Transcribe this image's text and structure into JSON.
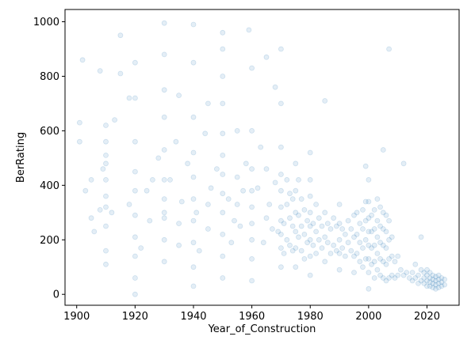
{
  "chart_data": {
    "type": "scatter",
    "xlabel": "Year_of_Construction",
    "ylabel": "BerRating",
    "xlim": [
      1896,
      2031
    ],
    "ylim": [
      -40,
      1045
    ],
    "xticks": [
      1900,
      1920,
      1940,
      1960,
      1980,
      2000,
      2020
    ],
    "yticks": [
      0,
      200,
      400,
      600,
      800,
      1000
    ],
    "grid": false,
    "legend": "none",
    "marker": "circle",
    "alpha": 0.12,
    "color": "#1f77b4",
    "series": [
      {
        "x": [
          1901,
          1901,
          1902,
          1903,
          1905,
          1905,
          1906,
          1908,
          1908,
          1909,
          1910,
          1910,
          1910,
          1910,
          1910,
          1910,
          1910,
          1910,
          1910,
          1910,
          1912,
          1913,
          1915,
          1915,
          1918,
          1918,
          1920,
          1920,
          1920,
          1920,
          1920,
          1920,
          1920,
          1920,
          1920,
          1920,
          1922,
          1924,
          1925,
          1926,
          1928,
          1930,
          1930,
          1930,
          1930,
          1930,
          1930,
          1930,
          1930,
          1930,
          1930,
          1930,
          1932,
          1934,
          1935,
          1935,
          1935,
          1936,
          1938,
          1940,
          1940,
          1940,
          1940,
          1940,
          1940,
          1940,
          1940,
          1940,
          1940,
          1941,
          1942,
          1944,
          1945,
          1945,
          1945,
          1946,
          1948,
          1950,
          1950,
          1950,
          1950,
          1950,
          1950,
          1950,
          1950,
          1950,
          1950,
          1950,
          1950,
          1952,
          1953,
          1954,
          1955,
          1955,
          1955,
          1956,
          1957,
          1958,
          1959,
          1960,
          1960,
          1960,
          1960,
          1960,
          1960,
          1960,
          1960,
          1960,
          1962,
          1963,
          1964,
          1965,
          1965,
          1965,
          1966,
          1967,
          1968,
          1968,
          1969,
          1970,
          1970,
          1970,
          1970,
          1970,
          1970,
          1970,
          1970,
          1970,
          1970,
          1971,
          1971,
          1972,
          1972,
          1972,
          1973,
          1973,
          1973,
          1974,
          1974,
          1974,
          1975,
          1975,
          1975,
          1975,
          1975,
          1975,
          1976,
          1976,
          1976,
          1977,
          1977,
          1977,
          1978,
          1978,
          1978,
          1979,
          1979,
          1980,
          1980,
          1980,
          1980,
          1980,
          1980,
          1980,
          1980,
          1981,
          1981,
          1982,
          1982,
          1982,
          1983,
          1983,
          1984,
          1984,
          1985,
          1985,
          1985,
          1986,
          1986,
          1987,
          1987,
          1988,
          1988,
          1989,
          1989,
          1990,
          1990,
          1990,
          1990,
          1990,
          1991,
          1991,
          1992,
          1992,
          1993,
          1993,
          1994,
          1994,
          1995,
          1995,
          1995,
          1995,
          1996,
          1996,
          1996,
          1997,
          1997,
          1997,
          1998,
          1998,
          1998,
          1998,
          1999,
          1999,
          1999,
          1999,
          2000,
          2000,
          2000,
          2000,
          2000,
          2000,
          2000,
          2000,
          2001,
          2001,
          2001,
          2001,
          2002,
          2002,
          2002,
          2002,
          2002,
          2003,
          2003,
          2003,
          2003,
          2003,
          2004,
          2004,
          2004,
          2004,
          2004,
          2005,
          2005,
          2005,
          2005,
          2005,
          2006,
          2006,
          2006,
          2006,
          2006,
          2007,
          2007,
          2007,
          2007,
          2008,
          2008,
          2008,
          2009,
          2009,
          2010,
          2010,
          2011,
          2012,
          2013,
          2014,
          2015,
          2015,
          2016,
          2016,
          2017,
          2017,
          2018,
          2018,
          2019,
          2019,
          2019,
          2020,
          2020,
          2020,
          2020,
          2021,
          2021,
          2021,
          2021,
          2022,
          2022,
          2022,
          2022,
          2023,
          2023,
          2023,
          2023,
          2024,
          2024,
          2024,
          2024,
          2025,
          2025,
          2025,
          2026,
          2026,
          2005,
          2007,
          1999,
          2012,
          2018,
          1985
        ],
        "y": [
          630,
          560,
          860,
          380,
          420,
          280,
          230,
          310,
          820,
          460,
          110,
          160,
          250,
          320,
          360,
          420,
          480,
          510,
          560,
          620,
          300,
          640,
          810,
          950,
          720,
          330,
          0,
          60,
          140,
          210,
          290,
          380,
          450,
          560,
          720,
          850,
          170,
          380,
          270,
          420,
          500,
          120,
          200,
          280,
          350,
          420,
          530,
          650,
          750,
          880,
          995,
          300,
          420,
          560,
          180,
          260,
          730,
          340,
          480,
          30,
          100,
          190,
          270,
          350,
          430,
          520,
          650,
          850,
          990,
          300,
          160,
          590,
          240,
          330,
          700,
          390,
          460,
          60,
          140,
          220,
          300,
          370,
          440,
          510,
          590,
          700,
          800,
          900,
          960,
          350,
          190,
          270,
          330,
          430,
          600,
          250,
          380,
          480,
          970,
          50,
          130,
          200,
          260,
          320,
          380,
          460,
          600,
          830,
          390,
          540,
          190,
          280,
          460,
          870,
          330,
          240,
          410,
          760,
          230,
          100,
          170,
          220,
          270,
          320,
          380,
          440,
          540,
          700,
          900,
          150,
          260,
          200,
          330,
          420,
          180,
          280,
          370,
          160,
          250,
          350,
          100,
          170,
          230,
          300,
          380,
          480,
          210,
          290,
          420,
          160,
          250,
          350,
          130,
          220,
          310,
          190,
          270,
          70,
          140,
          200,
          250,
          300,
          360,
          420,
          520,
          180,
          260,
          150,
          230,
          330,
          200,
          280,
          170,
          250,
          120,
          210,
          300,
          190,
          260,
          150,
          240,
          180,
          280,
          160,
          250,
          90,
          150,
          200,
          260,
          330,
          170,
          240,
          140,
          220,
          190,
          270,
          160,
          240,
          80,
          140,
          210,
          290,
          150,
          220,
          300,
          120,
          190,
          260,
          100,
          170,
          240,
          310,
          130,
          200,
          270,
          340,
          20,
          80,
          130,
          180,
          230,
          280,
          340,
          420,
          110,
          170,
          230,
          290,
          60,
          120,
          180,
          240,
          310,
          90,
          150,
          210,
          270,
          350,
          70,
          130,
          190,
          250,
          320,
          60,
          120,
          180,
          240,
          300,
          50,
          110,
          170,
          230,
          290,
          60,
          130,
          200,
          270,
          70,
          140,
          210,
          60,
          120,
          70,
          140,
          90,
          70,
          80,
          60,
          50,
          80,
          60,
          110,
          40,
          70,
          50,
          90,
          40,
          60,
          80,
          30,
          50,
          70,
          90,
          30,
          45,
          60,
          80,
          25,
          40,
          55,
          70,
          20,
          35,
          50,
          65,
          25,
          40,
          55,
          70,
          30,
          45,
          60,
          35,
          55,
          530,
          900,
          470,
          480,
          210,
          710
        ]
      }
    ]
  }
}
